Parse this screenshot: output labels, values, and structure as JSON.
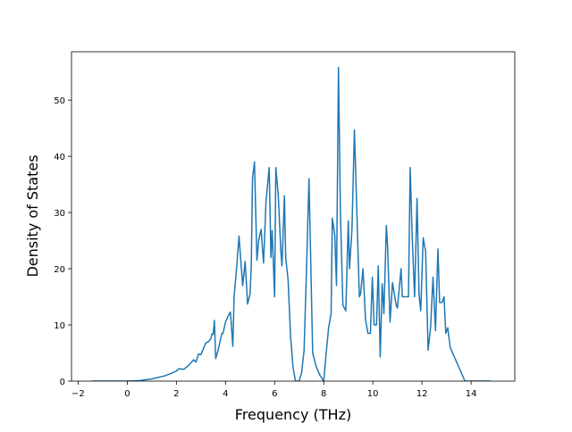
{
  "chart_data": {
    "type": "line",
    "x_label": "Frequency (THz)",
    "y_label": "Density of States",
    "xlim": [
      -2.27,
      15.78
    ],
    "ylim": [
      0,
      58.6
    ],
    "xticks": [
      {
        "value": -2,
        "label": "−2"
      },
      0,
      2,
      4,
      6,
      8,
      10,
      12,
      14
    ],
    "yticks": [
      0,
      10,
      20,
      30,
      40,
      50
    ],
    "x": [
      -1.45,
      0,
      0.5,
      1.0,
      1.5,
      1.8,
      2.0,
      2.1,
      2.3,
      2.5,
      2.7,
      2.8,
      2.9,
      3.0,
      3.1,
      3.2,
      3.3,
      3.4,
      3.45,
      3.5,
      3.55,
      3.6,
      3.7,
      3.85,
      3.9,
      4.0,
      4.1,
      4.2,
      4.3,
      4.35,
      4.45,
      4.55,
      4.7,
      4.8,
      4.9,
      5.0,
      5.05,
      5.1,
      5.18,
      5.28,
      5.35,
      5.45,
      5.55,
      5.65,
      5.78,
      5.85,
      5.9,
      6.0,
      6.05,
      6.15,
      6.25,
      6.3,
      6.4,
      6.45,
      6.55,
      6.65,
      6.75,
      6.85,
      7.0,
      7.1,
      7.2,
      7.3,
      7.4,
      7.55,
      7.7,
      7.85,
      8.0,
      8.1,
      8.2,
      8.3,
      8.35,
      8.45,
      8.52,
      8.6,
      8.68,
      8.78,
      8.9,
      9.0,
      9.05,
      9.15,
      9.25,
      9.35,
      9.45,
      9.5,
      9.6,
      9.7,
      9.8,
      9.9,
      9.98,
      10.05,
      10.15,
      10.22,
      10.3,
      10.38,
      10.45,
      10.55,
      10.6,
      10.7,
      10.8,
      10.95,
      11.0,
      11.15,
      11.2,
      11.35,
      11.45,
      11.52,
      11.6,
      11.7,
      11.8,
      11.88,
      11.95,
      12.05,
      12.15,
      12.25,
      12.35,
      12.45,
      12.55,
      12.65,
      12.72,
      12.82,
      12.9,
      12.97,
      13.05,
      13.15,
      13.3,
      13.5,
      13.75,
      14.8
    ],
    "series": [
      {
        "color": "#1f77b4",
        "values": [
          0,
          0,
          0.1,
          0.4,
          0.9,
          1.4,
          1.8,
          2.2,
          2.1,
          2.8,
          3.8,
          3.4,
          4.8,
          4.7,
          5.8,
          6.8,
          7.0,
          7.5,
          8.4,
          8.3,
          10.8,
          4.0,
          5.5,
          8.5,
          8.5,
          10.5,
          11.5,
          12.3,
          6.2,
          15,
          20,
          25.8,
          17,
          21.3,
          13.7,
          15.5,
          20.5,
          36,
          39,
          21.5,
          25,
          27,
          21,
          32,
          38,
          22,
          26.8,
          15,
          38,
          33,
          23.5,
          20.5,
          33,
          22,
          18,
          8,
          2.5,
          0,
          0,
          1.5,
          5.5,
          20,
          36,
          5,
          2.5,
          1.0,
          0,
          5,
          9.5,
          12,
          29,
          26,
          17,
          55.8,
          30,
          13.5,
          12.5,
          28.5,
          20,
          27,
          44.7,
          30,
          15,
          15.5,
          20,
          11,
          8.5,
          8.5,
          18.5,
          10,
          10,
          20.5,
          4.3,
          17.3,
          12,
          27.7,
          24,
          10.5,
          17.5,
          13.5,
          13,
          20,
          15,
          15,
          15,
          38,
          26,
          15,
          32.5,
          15.5,
          12.5,
          25.5,
          23,
          5.5,
          9.5,
          18.5,
          9,
          23.5,
          14,
          14,
          15,
          8.5,
          9.5,
          6,
          4.5,
          2.5,
          0,
          0
        ]
      }
    ]
  }
}
